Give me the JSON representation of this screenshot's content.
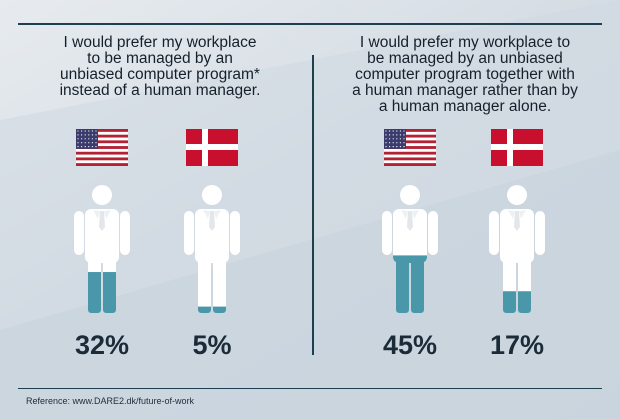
{
  "colors": {
    "accent": "#4a97aa",
    "figure": "#ffffff",
    "text": "#1b2b38",
    "rule": "#1d3f4f",
    "us_red": "#b22234",
    "us_blue": "#3c3b6e",
    "dk_red": "#c8102e"
  },
  "panels": [
    {
      "heading": "I would prefer my workplace\nto be managed by an\nunbiased computer program*\ninstead of a human manager."
    },
    {
      "heading": "I would prefer my workplace to\nbe managed by an unbiased\ncomputer program together with\na human manager rather than by\na human manager alone."
    }
  ],
  "chart_data": {
    "type": "bar",
    "series": [
      {
        "values": [
          {
            "country_flag": "us-flag",
            "value": 32,
            "label": "32%"
          },
          {
            "country_flag": "dk-flag",
            "value": 5,
            "label": "5%"
          }
        ]
      },
      {
        "values": [
          {
            "country_flag": "us-flag",
            "value": 45,
            "label": "45%"
          },
          {
            "country_flag": "dk-flag",
            "value": 17,
            "label": "17%"
          }
        ]
      }
    ]
  },
  "footer": {
    "reference": "Reference: www.DARE2.dk/future-of-work"
  }
}
